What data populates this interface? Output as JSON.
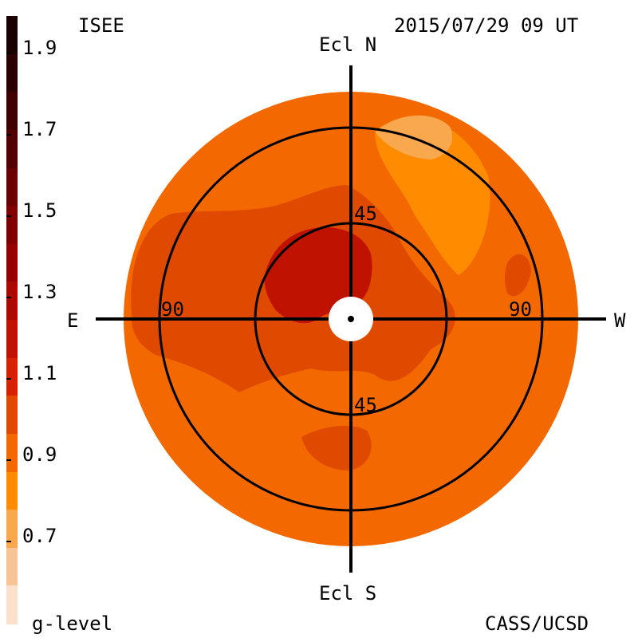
{
  "header": {
    "source": "ISEE",
    "timestamp": "2015/07/29 09 UT",
    "credit": "CASS/UCSD"
  },
  "colorbar": {
    "title": "g-level",
    "labels": [
      "1.9",
      "1.7",
      "1.5",
      "1.3",
      "1.1",
      "0.9",
      "0.7"
    ],
    "colors": [
      "#1a0000",
      "#2c0000",
      "#400000",
      "#540000",
      "#6a0000",
      "#800000",
      "#960000",
      "#aa0a00",
      "#c01200",
      "#d42200",
      "#e04a00",
      "#f46800",
      "#ff8c00",
      "#f9a84e",
      "#f8c496",
      "#fbe0cc"
    ]
  },
  "map": {
    "labels": {
      "north": "Ecl N",
      "south": "Ecl S",
      "east": "E",
      "west": "W",
      "inner_top": "45",
      "inner_bottom": "45",
      "outer_left": "90",
      "outer_right": "90"
    },
    "colors": {
      "background": "#f46800",
      "mid": "#e04a00",
      "high": "#c01200",
      "low": "#ff8c00",
      "lower": "#f9a84e"
    }
  }
}
